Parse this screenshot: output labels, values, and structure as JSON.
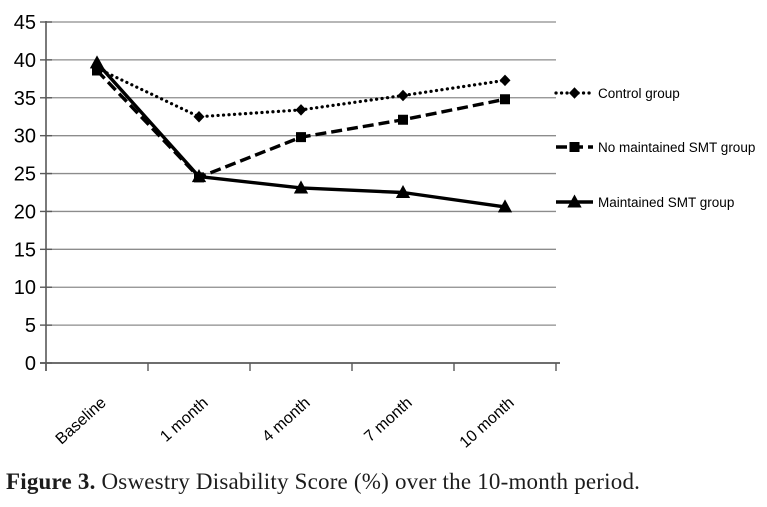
{
  "figure": {
    "caption_prefix": "Figure 3.",
    "caption_text": " Oswestry Disability Score (%) over the 10-month period."
  },
  "chart_data": {
    "type": "line",
    "title": "",
    "xlabel": "",
    "ylabel": "",
    "categories": [
      "Baseline",
      "1 month",
      "4 month",
      "7 month",
      "10 month"
    ],
    "ylim": [
      0,
      45
    ],
    "yticks": [
      0,
      5,
      10,
      15,
      20,
      25,
      30,
      35,
      40,
      45
    ],
    "grid": "horizontal",
    "legend_position": "right",
    "series": [
      {
        "name": "Control group",
        "line_style": "dotted",
        "marker": "diamond",
        "color": "#000000",
        "values": [
          38.9,
          32.5,
          33.4,
          35.3,
          37.3
        ]
      },
      {
        "name": "No maintained SMT group",
        "line_style": "dashed",
        "marker": "square",
        "color": "#000000",
        "values": [
          38.6,
          24.5,
          29.8,
          32.1,
          34.8
        ]
      },
      {
        "name": "Maintained  SMT group",
        "line_style": "solid",
        "marker": "triangle",
        "color": "#000000",
        "values": [
          39.6,
          24.6,
          23.1,
          22.5,
          20.6
        ]
      }
    ]
  },
  "colors": {
    "background": "#ffffff",
    "gridline": "#8c8c8c",
    "axis": "#595959",
    "series": "#000000",
    "caption_text": "#1c1c1c"
  }
}
